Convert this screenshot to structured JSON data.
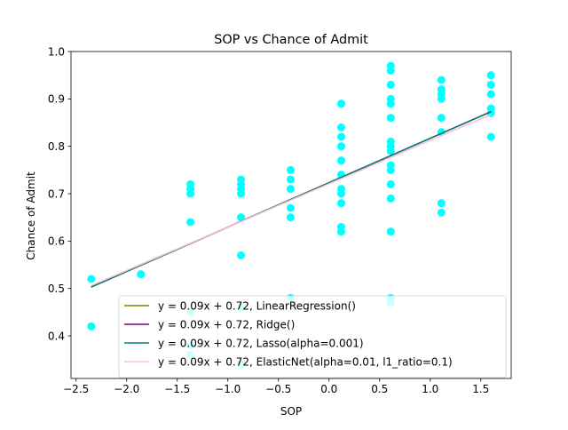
{
  "chart_data": {
    "type": "scatter",
    "title": "SOP vs Chance of Admit",
    "xlabel": "SOP",
    "ylabel": "Chance of Admit",
    "xlim": [
      -2.55,
      1.8
    ],
    "ylim": [
      0.31,
      1.0
    ],
    "x_ticks": [
      -2.5,
      -2.0,
      -1.5,
      -1.0,
      -0.5,
      0.0,
      0.5,
      1.0,
      1.5
    ],
    "x_tick_labels": [
      "−2.5",
      "−2.0",
      "−1.5",
      "−1.0",
      "−0.5",
      "0.0",
      "0.5",
      "1.0",
      "1.5"
    ],
    "y_ticks": [
      0.4,
      0.5,
      0.6,
      0.7,
      0.8,
      0.9,
      1.0
    ],
    "y_tick_labels": [
      "0.4",
      "0.5",
      "0.6",
      "0.7",
      "0.8",
      "0.9",
      "1.0"
    ],
    "grid": false,
    "legend_position": "lower-right",
    "scatter": {
      "color": "#00ffff",
      "points": [
        [
          -2.35,
          0.52
        ],
        [
          -2.35,
          0.42
        ],
        [
          -1.86,
          0.53
        ],
        [
          -1.37,
          0.72
        ],
        [
          -1.37,
          0.71
        ],
        [
          -1.37,
          0.7
        ],
        [
          -1.37,
          0.64
        ],
        [
          -1.37,
          0.45
        ],
        [
          -1.37,
          0.38
        ],
        [
          -1.37,
          0.36
        ],
        [
          -0.87,
          0.73
        ],
        [
          -0.87,
          0.72
        ],
        [
          -0.87,
          0.71
        ],
        [
          -0.87,
          0.7
        ],
        [
          -0.87,
          0.65
        ],
        [
          -0.87,
          0.57
        ],
        [
          -0.87,
          0.46
        ],
        [
          -0.87,
          0.34
        ],
        [
          -0.38,
          0.75
        ],
        [
          -0.38,
          0.73
        ],
        [
          -0.38,
          0.71
        ],
        [
          -0.38,
          0.67
        ],
        [
          -0.38,
          0.65
        ],
        [
          -0.38,
          0.48
        ],
        [
          0.12,
          0.89
        ],
        [
          0.12,
          0.84
        ],
        [
          0.12,
          0.82
        ],
        [
          0.12,
          0.8
        ],
        [
          0.12,
          0.77
        ],
        [
          0.12,
          0.74
        ],
        [
          0.12,
          0.71
        ],
        [
          0.12,
          0.7
        ],
        [
          0.12,
          0.68
        ],
        [
          0.12,
          0.63
        ],
        [
          0.12,
          0.62
        ],
        [
          0.61,
          0.97
        ],
        [
          0.61,
          0.96
        ],
        [
          0.61,
          0.93
        ],
        [
          0.61,
          0.9
        ],
        [
          0.61,
          0.89
        ],
        [
          0.61,
          0.86
        ],
        [
          0.61,
          0.81
        ],
        [
          0.61,
          0.8
        ],
        [
          0.61,
          0.79
        ],
        [
          0.61,
          0.76
        ],
        [
          0.61,
          0.75
        ],
        [
          0.61,
          0.72
        ],
        [
          0.61,
          0.69
        ],
        [
          0.61,
          0.62
        ],
        [
          0.61,
          0.48
        ],
        [
          0.61,
          0.47
        ],
        [
          1.11,
          0.94
        ],
        [
          1.11,
          0.92
        ],
        [
          1.11,
          0.91
        ],
        [
          1.11,
          0.9
        ],
        [
          1.11,
          0.86
        ],
        [
          1.11,
          0.83
        ],
        [
          1.11,
          0.68
        ],
        [
          1.11,
          0.66
        ],
        [
          1.6,
          0.95
        ],
        [
          1.6,
          0.93
        ],
        [
          1.6,
          0.91
        ],
        [
          1.6,
          0.88
        ],
        [
          1.6,
          0.87
        ],
        [
          1.6,
          0.82
        ]
      ]
    },
    "series": [
      {
        "name": "y = 0.09x + 0.72, LinearRegression()",
        "color": "#808000",
        "x": [
          -2.35,
          1.6
        ],
        "y": [
          0.503,
          0.873
        ]
      },
      {
        "name": "y = 0.09x + 0.72, Ridge()",
        "color": "#800080",
        "x": [
          -2.35,
          1.6
        ],
        "y": [
          0.503,
          0.873
        ]
      },
      {
        "name": "y = 0.09x + 0.72, Lasso(alpha=0.001)",
        "color": "#008080",
        "x": [
          -2.35,
          1.6
        ],
        "y": [
          0.503,
          0.873
        ]
      },
      {
        "name": "y = 0.09x + 0.72, ElasticNet(alpha=0.01, l1_ratio=0.1)",
        "color": "#ffc0cb",
        "x": [
          -2.35,
          1.6
        ],
        "y": [
          0.506,
          0.867
        ]
      }
    ]
  }
}
